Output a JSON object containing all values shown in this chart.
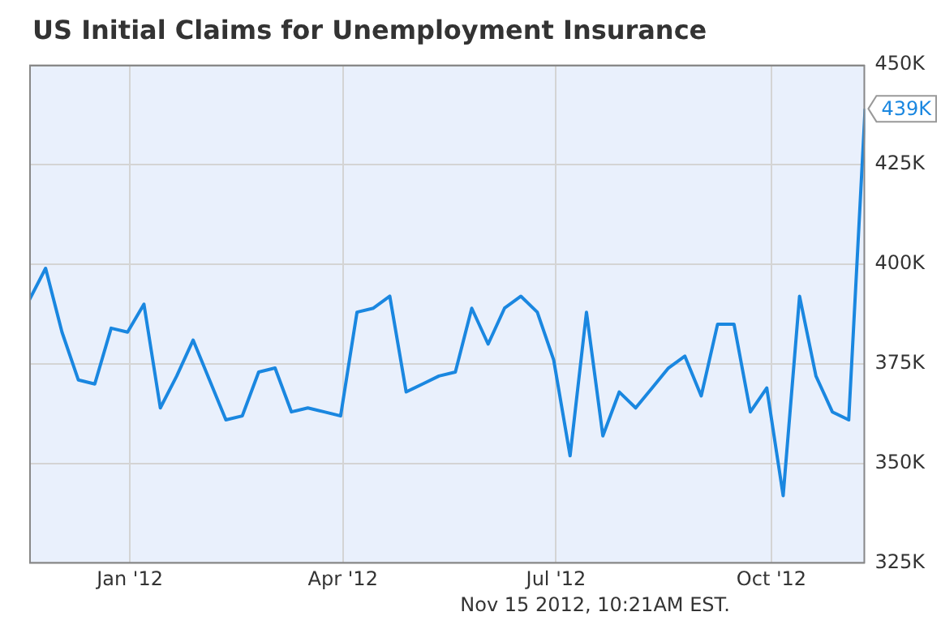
{
  "chart_data": {
    "type": "line",
    "title": "US Initial Claims for Unemployment Insurance",
    "x": [
      "2011-11-19",
      "2011-11-26",
      "2011-12-03",
      "2011-12-10",
      "2011-12-17",
      "2011-12-24",
      "2011-12-31",
      "2012-01-07",
      "2012-01-14",
      "2012-01-21",
      "2012-01-28",
      "2012-02-04",
      "2012-02-11",
      "2012-02-18",
      "2012-02-25",
      "2012-03-03",
      "2012-03-10",
      "2012-03-17",
      "2012-03-24",
      "2012-03-31",
      "2012-04-07",
      "2012-04-14",
      "2012-04-21",
      "2012-04-28",
      "2012-05-05",
      "2012-05-12",
      "2012-05-19",
      "2012-05-26",
      "2012-06-02",
      "2012-06-09",
      "2012-06-16",
      "2012-06-23",
      "2012-06-30",
      "2012-07-07",
      "2012-07-14",
      "2012-07-21",
      "2012-07-28",
      "2012-08-04",
      "2012-08-11",
      "2012-08-18",
      "2012-08-25",
      "2012-09-01",
      "2012-09-08",
      "2012-09-15",
      "2012-09-22",
      "2012-09-29",
      "2012-10-06",
      "2012-10-13",
      "2012-10-20",
      "2012-10-27",
      "2012-11-03",
      "2012-11-10"
    ],
    "series": [
      {
        "color": "#1a87e0",
        "values": [
          391,
          399,
          383,
          371,
          370,
          384,
          383,
          390,
          364,
          372,
          381,
          371,
          361,
          362,
          373,
          374,
          363,
          364,
          363,
          362,
          388,
          389,
          392,
          368,
          370,
          372,
          373,
          389,
          380,
          389,
          392,
          388,
          376,
          352,
          388,
          357,
          368,
          364,
          369,
          374,
          377,
          367,
          385,
          385,
          363,
          369,
          342,
          392,
          372,
          363,
          361,
          439
        ],
        "value_labels": [
          null,
          null,
          null,
          null,
          null,
          null,
          null,
          null,
          null,
          null,
          null,
          null,
          null,
          null,
          null,
          null,
          null,
          null,
          null,
          null,
          null,
          null,
          null,
          null,
          null,
          null,
          null,
          null,
          null,
          null,
          null,
          null,
          null,
          null,
          null,
          null,
          null,
          null,
          null,
          null,
          null,
          null,
          null,
          null,
          null,
          null,
          null,
          null,
          null,
          null,
          null,
          "439K"
        ]
      }
    ],
    "xlim": [
      "2011-11-19",
      "2012-11-10"
    ],
    "xticks": [
      {
        "value": "2012-01-01",
        "label": "Jan '12"
      },
      {
        "value": "2012-04-01",
        "label": "Apr '12"
      },
      {
        "value": "2012-07-01",
        "label": "Jul '12"
      },
      {
        "value": "2012-10-01",
        "label": "Oct '12"
      }
    ],
    "ylim": [
      325,
      450
    ],
    "yticks": [
      {
        "value": 325,
        "label": "325K"
      },
      {
        "value": 350,
        "label": "350K"
      },
      {
        "value": 375,
        "label": "375K"
      },
      {
        "value": 400,
        "label": "400K"
      },
      {
        "value": 425,
        "label": "425K"
      },
      {
        "value": 450,
        "label": "450K"
      }
    ],
    "grid": true,
    "legend": false,
    "marker": "none",
    "line_style": "solid",
    "annotations": [
      "Nov 15 2012, 10:21AM EST."
    ]
  }
}
